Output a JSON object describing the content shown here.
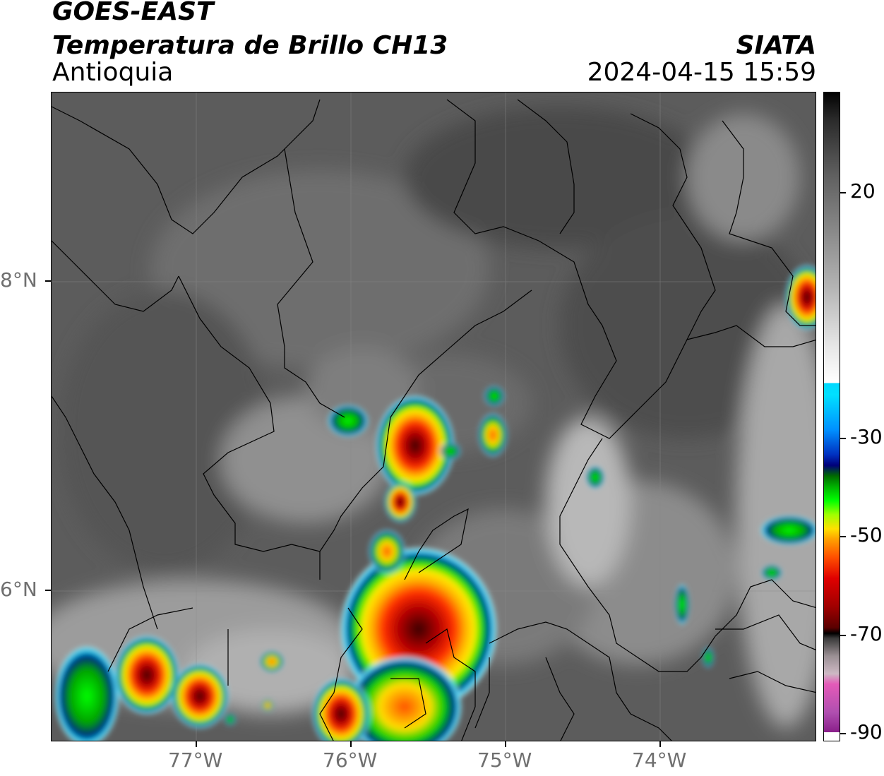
{
  "header": {
    "satellite": "GOES-EAST",
    "product": "Temperatura de Brillo CH13",
    "region": "Antioquia",
    "organization": "SIATA",
    "timestamp": "2024-04-15 15:59"
  },
  "axes": {
    "x_labels": [
      "77°W",
      "76°W",
      "75°W",
      "74°W"
    ],
    "y_labels": [
      "8°N",
      "6°N"
    ]
  },
  "colorbar": {
    "labels": [
      "20",
      "-30",
      "-50",
      "-70",
      "-90"
    ],
    "range": [
      -90,
      30
    ],
    "colors": {
      "warm_low": "#ffffff",
      "cold_cyan": "#00e0ff",
      "blue": "#0030c0",
      "green": "#00ff00",
      "yellow": "#ffe000",
      "red": "#e00000",
      "dark": "#000000",
      "magenta": "#e45ab8"
    }
  }
}
